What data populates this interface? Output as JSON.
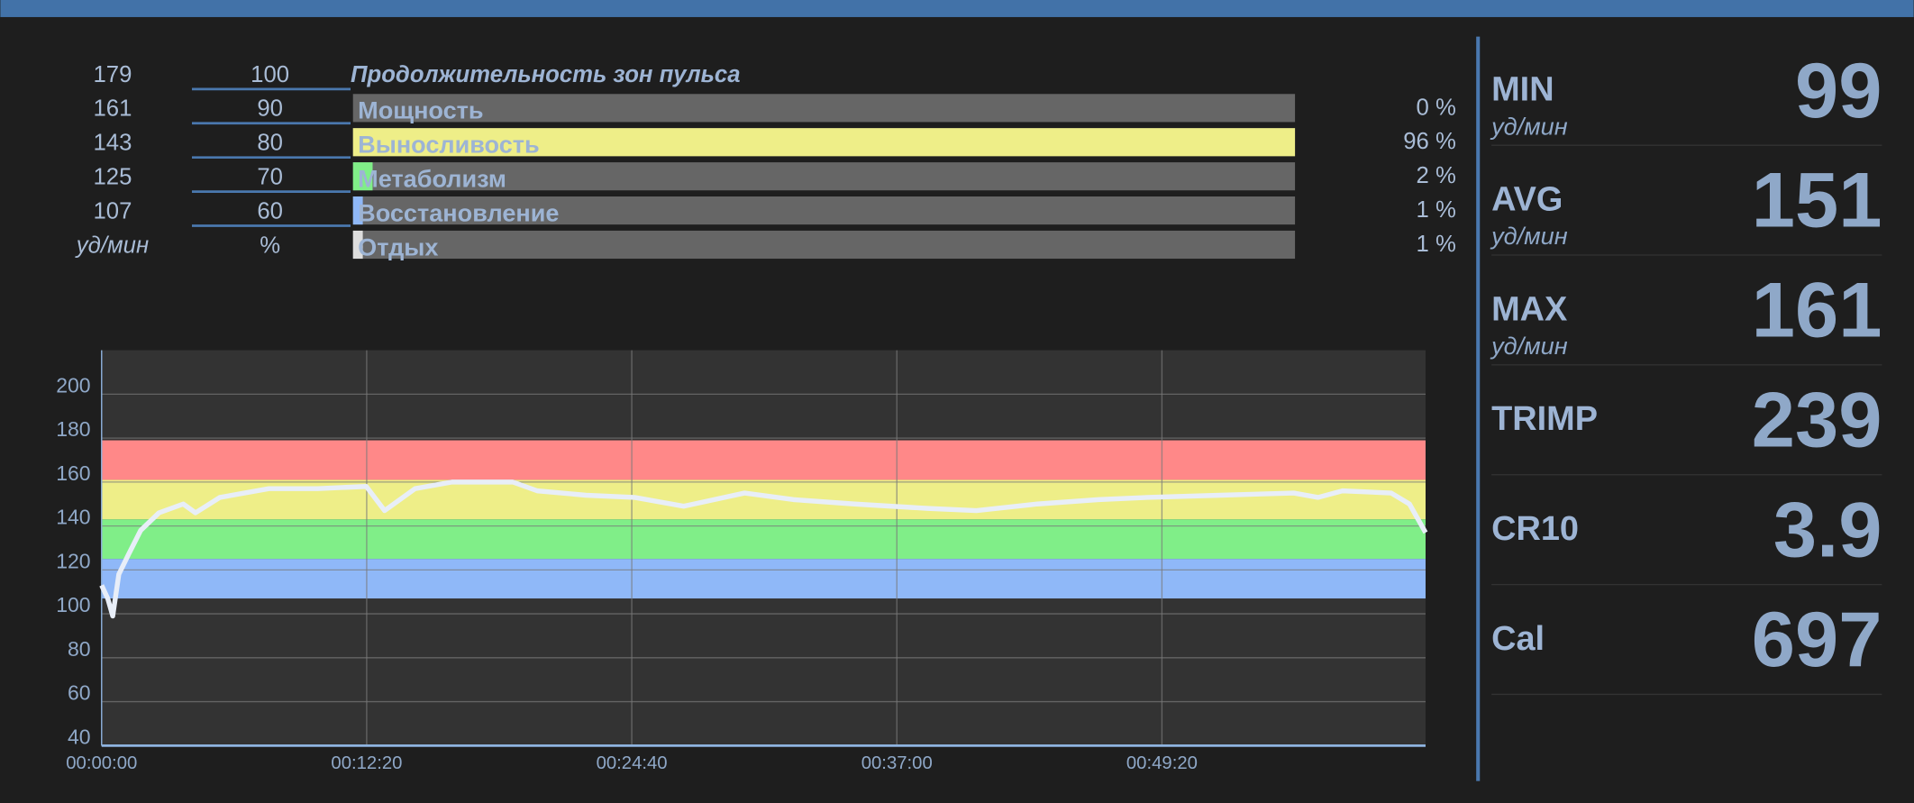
{
  "zones": {
    "title": "Продолжительность зон пульса",
    "hr_unit": "уд/мин",
    "pct_unit": "%",
    "hr": [
      179,
      161,
      143,
      125,
      107
    ],
    "pct": [
      100,
      90,
      80,
      70,
      60
    ],
    "rows": [
      {
        "name": "Мощность",
        "value": 0,
        "value_label": "0 %",
        "color": "#ff8888"
      },
      {
        "name": "Выносливость",
        "value": 96,
        "value_label": "96 %",
        "color": "#eeee88"
      },
      {
        "name": "Метаболизм",
        "value": 2,
        "value_label": "2 %",
        "color": "#80ee88"
      },
      {
        "name": "Восстановление",
        "value": 1,
        "value_label": "1 %",
        "color": "#8fb8f8"
      },
      {
        "name": "Отдых",
        "value": 1,
        "value_label": "1 %",
        "color": "#dddddd"
      }
    ]
  },
  "chart_data": {
    "type": "line",
    "x": [
      0,
      17,
      31,
      48,
      75,
      109,
      160,
      228,
      262,
      330,
      467,
      603,
      739,
      790,
      875,
      978,
      1148,
      1216,
      1352,
      1488,
      1625,
      1795,
      1931,
      2102,
      2306,
      2442,
      2612,
      2783,
      2919,
      3123,
      3328,
      3396,
      3464,
      3600,
      3651,
      3696
    ],
    "series": [
      {
        "color": "#e8eef8",
        "values": [
          113,
          107,
          99,
          118,
          127,
          138,
          146,
          150,
          146,
          153,
          157,
          157,
          158,
          147,
          157,
          160,
          160,
          156,
          154,
          153,
          149,
          155,
          152,
          150,
          148,
          147,
          150,
          152,
          153,
          154,
          155,
          153,
          156,
          155,
          150,
          137
        ]
      }
    ],
    "xlim": [
      0,
      3696
    ],
    "xticks": [
      {
        "value": 0,
        "label": "00:00:00"
      },
      {
        "value": 740,
        "label": "00:12:20"
      },
      {
        "value": 1480,
        "label": "00:24:40"
      },
      {
        "value": 2220,
        "label": "00:37:00"
      },
      {
        "value": 2960,
        "label": "00:49:20"
      }
    ],
    "ylim": [
      40,
      220
    ],
    "yticks": [
      40,
      60,
      80,
      100,
      120,
      140,
      160,
      180,
      200
    ],
    "grid": true
  },
  "stats": [
    {
      "label": "MIN",
      "value": 99,
      "unit": "уд/мин"
    },
    {
      "label": "AVG",
      "value": 151,
      "unit": "уд/мин"
    },
    {
      "label": "MAX",
      "value": 161,
      "unit": "уд/мин"
    },
    {
      "label": "TRIMP",
      "value": 239
    },
    {
      "label": "CR10",
      "value": 3.9
    },
    {
      "label": "Cal",
      "value": 697
    }
  ]
}
